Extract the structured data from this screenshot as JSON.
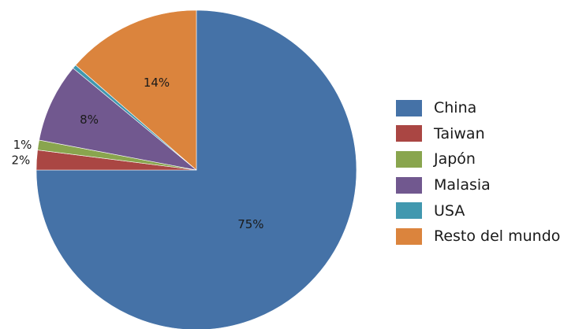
{
  "chart_data": {
    "type": "pie",
    "title": "",
    "slices": [
      {
        "label": "China",
        "value": 75,
        "value_label": "75%",
        "color": "#4572A7"
      },
      {
        "label": "Taiwan",
        "value": 2,
        "value_label": "2%",
        "color": "#AA4643"
      },
      {
        "label": "Japón",
        "value": 1,
        "value_label": "1%",
        "color": "#89A54E"
      },
      {
        "label": "Malasia",
        "value": 8,
        "value_label": "8%",
        "color": "#71588F"
      },
      {
        "label": "USA",
        "value": 0.4,
        "value_label": "",
        "color": "#4198AF"
      },
      {
        "label": "Resto del mundo",
        "value": 13.6,
        "value_label": "14%",
        "color": "#DB843D"
      }
    ],
    "legend_position": "right"
  }
}
